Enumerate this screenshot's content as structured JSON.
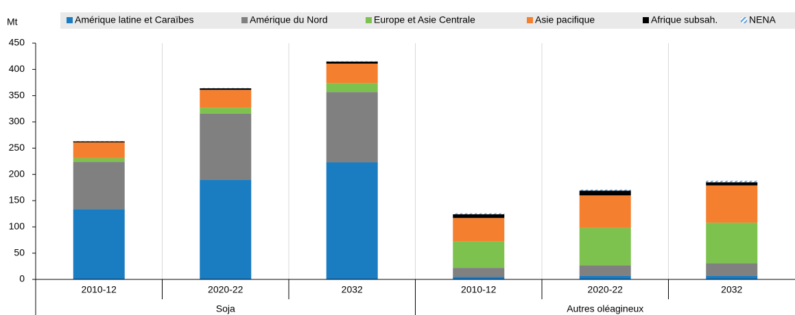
{
  "chart_data": {
    "type": "stacked_bar",
    "y_label": "Mt",
    "categories": [
      "2010-12",
      "2020-22",
      "2032",
      "2010-12",
      "2020-22",
      "2032"
    ],
    "groups": [
      "Soja",
      "Autres oléagineux"
    ],
    "ylim": [
      0,
      450
    ],
    "yticks": [
      0,
      50,
      100,
      150,
      200,
      250,
      300,
      350,
      400,
      450
    ],
    "series": [
      {
        "name": "Amérique latine et Caraïbes",
        "color": "#1a7cc1",
        "values": [
          134,
          190,
          223,
          5,
          7,
          7
        ]
      },
      {
        "name": "Amérique du Nord",
        "color": "#808080",
        "values": [
          90,
          126,
          134,
          17,
          20,
          24
        ]
      },
      {
        "name": "Europe et Asie Centrale",
        "color": "#7dc24e",
        "values": [
          7,
          11,
          17,
          50,
          71,
          77
        ]
      },
      {
        "name": "Asie pacifique",
        "color": "#f47f2f",
        "values": [
          30,
          34,
          37,
          45,
          62,
          71
        ]
      },
      {
        "name": "Afrique subsah.",
        "color": "#000000",
        "values": [
          2,
          3,
          4,
          7,
          9,
          6
        ]
      },
      {
        "name": "NENA",
        "color": "#6fa8dc",
        "hatched": true,
        "values": [
          0.5,
          0.5,
          0.5,
          2,
          2,
          3
        ]
      }
    ]
  }
}
